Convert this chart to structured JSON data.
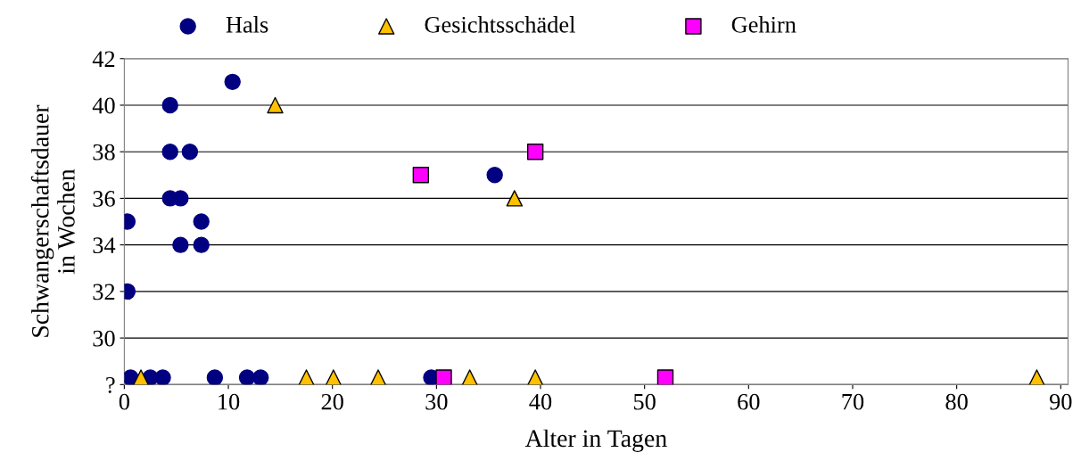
{
  "chart_data": {
    "type": "scatter",
    "xlabel": "Alter in Tagen",
    "ylabel": "Schwangerschaftsdauer\nin Wochen",
    "xlim": [
      0,
      90.7
    ],
    "xticks": [
      0,
      10,
      20,
      30,
      40,
      50,
      60,
      70,
      80,
      90
    ],
    "ylim": [
      28,
      42
    ],
    "yticks": [
      {
        "value": 28,
        "label": "?"
      },
      30,
      32,
      34,
      36,
      38,
      40,
      42
    ],
    "grid": "y",
    "legend": "top",
    "series": [
      {
        "name": "Hals",
        "color": "#000080",
        "marker": "circle",
        "x": [
          0.3,
          0.3,
          0.6,
          2.5,
          3.7,
          4.4,
          4.4,
          4.4,
          5.4,
          5.4,
          6.3,
          7.4,
          7.4,
          10.4,
          8.7,
          11.8,
          13.1,
          29.5,
          35.6
        ],
        "values": [
          35,
          32,
          28.3,
          28.3,
          28.3,
          40,
          38,
          36,
          36,
          34,
          38,
          35,
          34,
          41,
          28.3,
          28.3,
          28.3,
          28.3,
          37
        ]
      },
      {
        "name": "Gesichtsschädel",
        "color": "#ffc000",
        "marker": "triangle",
        "x": [
          1.6,
          14.5,
          17.5,
          20.1,
          24.4,
          33.2,
          37.5,
          39.5,
          87.7
        ],
        "values": [
          28.3,
          40,
          28.3,
          28.3,
          28.3,
          28.3,
          36,
          28.3,
          28.3
        ]
      },
      {
        "name": "Gehirn",
        "color": "#ff00ff",
        "marker": "square",
        "x": [
          28.5,
          30.7,
          39.5,
          52.0
        ],
        "values": [
          37,
          28.3,
          38,
          28.3
        ]
      }
    ]
  }
}
